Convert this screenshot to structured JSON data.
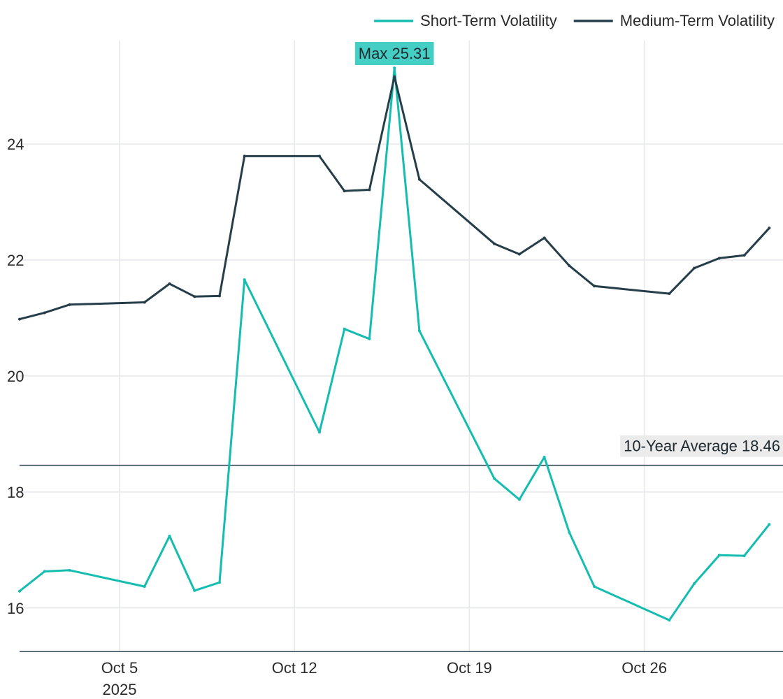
{
  "chart_data": {
    "type": "line",
    "title": "",
    "xlabel": "",
    "ylabel": "",
    "x": [
      "2025-10-01",
      "2025-10-02",
      "2025-10-03",
      "2025-10-06",
      "2025-10-07",
      "2025-10-08",
      "2025-10-09",
      "2025-10-10",
      "2025-10-13",
      "2025-10-14",
      "2025-10-15",
      "2025-10-16",
      "2025-10-17",
      "2025-10-20",
      "2025-10-21",
      "2025-10-22",
      "2025-10-23",
      "2025-10-24",
      "2025-10-27",
      "2025-10-28",
      "2025-10-29",
      "2025-10-30",
      "2025-10-31"
    ],
    "series": [
      {
        "name": "Short-Term Volatility",
        "color": "#14bdb0",
        "values": [
          16.29,
          16.63,
          16.65,
          16.37,
          17.24,
          16.3,
          16.44,
          21.66,
          19.03,
          20.81,
          20.64,
          25.31,
          20.78,
          18.23,
          17.87,
          18.6,
          17.3,
          16.37,
          15.79,
          16.42,
          16.91,
          16.9,
          17.44
        ]
      },
      {
        "name": "Medium-Term Volatility",
        "color": "#263e4a",
        "values": [
          20.98,
          21.09,
          21.23,
          21.27,
          21.59,
          21.37,
          21.38,
          23.79,
          23.79,
          23.19,
          23.21,
          25.16,
          23.39,
          22.28,
          22.1,
          22.38,
          21.9,
          21.55,
          21.42,
          21.86,
          22.03,
          22.08,
          22.55
        ]
      }
    ],
    "ylim": [
      15.25,
      25.88
    ],
    "yticks": [
      16,
      18,
      20,
      22,
      24
    ],
    "ytick_labels": [
      "16",
      "18",
      "20",
      "22",
      "24"
    ],
    "xlim": [
      "2025-10-01",
      "2025-10-31"
    ],
    "xticks": [
      "2025-10-05",
      "2025-10-12",
      "2025-10-19",
      "2025-10-26"
    ],
    "xtick_labels": [
      "Oct 5",
      "Oct 12",
      "Oct 19",
      "Oct 26"
    ],
    "xtick_year": "2025",
    "grid": true,
    "legend_position": "top-right",
    "reference_line": {
      "value": 18.46,
      "label": "10-Year Average 18.46",
      "color": "#263e4a"
    },
    "max_annotation": {
      "label": "Max 25.31",
      "x": "2025-10-16",
      "value": 25.31,
      "color": "#45cfc4"
    }
  }
}
